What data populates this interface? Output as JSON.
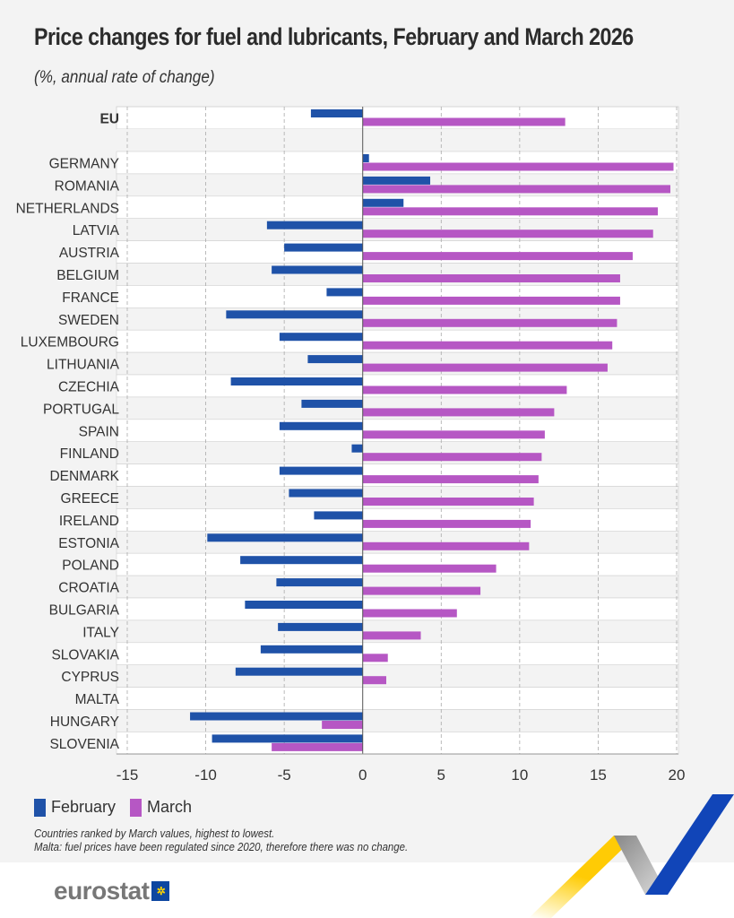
{
  "title": "Price changes for fuel and lubricants, February and March 2026",
  "subtitle": "(%, annual rate of change)",
  "legend": [
    {
      "label": "February",
      "color": "#1f52a8"
    },
    {
      "label": "March",
      "color": "#b657c4"
    }
  ],
  "notes": [
    "Countries ranked by March values, highest to lowest.",
    "Malta: fuel prices have been regulated since 2020, therefore there was no change."
  ],
  "logo": {
    "text": "eurostat"
  },
  "chart_data": {
    "type": "bar",
    "orientation": "horizontal",
    "title": "Price changes for fuel and lubricants, February and March 2026",
    "xlim": [
      -15,
      20
    ],
    "xticks": [
      -15,
      -10,
      -5,
      0,
      5,
      10,
      15,
      20
    ],
    "grid": "vertical dashed",
    "legend_position": "bottom-left",
    "categories": [
      "EU",
      "GERMANY",
      "ROMANIA",
      "NETHERLANDS",
      "LATVIA",
      "AUSTRIA",
      "BELGIUM",
      "FRANCE",
      "SWEDEN",
      "LUXEMBOURG",
      "LITHUANIA",
      "CZECHIA",
      "PORTUGAL",
      "SPAIN",
      "FINLAND",
      "DENMARK",
      "GREECE",
      "IRELAND",
      "ESTONIA",
      "POLAND",
      "CROATIA",
      "BULGARIA",
      "ITALY",
      "SLOVAKIA",
      "CYPRUS",
      "MALTA",
      "HUNGARY",
      "SLOVENIA"
    ],
    "series": [
      {
        "name": "February",
        "color": "#1f52a8",
        "values": [
          -3.3,
          0.4,
          4.3,
          2.6,
          -6.1,
          -5.0,
          -5.8,
          -2.3,
          -8.7,
          -5.3,
          -3.5,
          -8.4,
          -3.9,
          -5.3,
          -0.7,
          -5.3,
          -4.7,
          -3.1,
          -9.9,
          -7.8,
          -5.5,
          -7.5,
          -5.4,
          -6.5,
          -8.1,
          0,
          -11.0,
          -9.6
        ]
      },
      {
        "name": "March",
        "color": "#b657c4",
        "values": [
          12.9,
          19.8,
          19.6,
          18.8,
          18.5,
          17.2,
          16.4,
          16.4,
          16.2,
          15.9,
          15.6,
          13.0,
          12.2,
          11.6,
          11.4,
          11.2,
          10.9,
          10.7,
          10.6,
          8.5,
          7.5,
          6.0,
          3.7,
          1.6,
          1.5,
          0,
          -2.6,
          -5.8
        ]
      }
    ]
  }
}
